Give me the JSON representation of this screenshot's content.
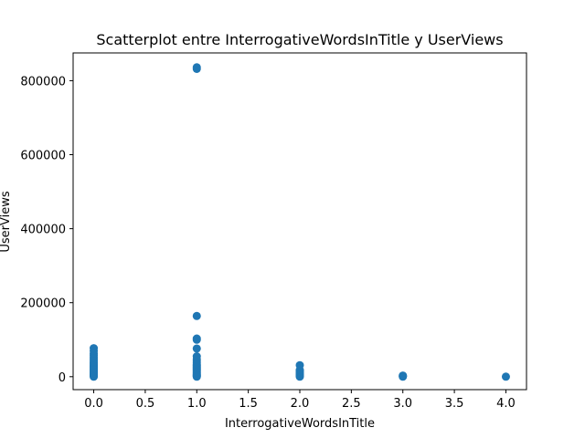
{
  "chart_data": {
    "type": "scatter",
    "title": "Scatterplot entre InterrogativeWordsInTitle y UserViews",
    "xlabel": "InterrogativeWordsInTitle",
    "ylabel": "UserViews",
    "xlim": [
      -0.2,
      4.2
    ],
    "ylim": [
      -35000,
      875000
    ],
    "xticks": [
      0.0,
      0.5,
      1.0,
      1.5,
      2.0,
      2.5,
      3.0,
      3.5,
      4.0
    ],
    "xtick_labels": [
      "0.0",
      "0.5",
      "1.0",
      "1.5",
      "2.0",
      "2.5",
      "3.0",
      "3.5",
      "4.0"
    ],
    "yticks": [
      0,
      200000,
      400000,
      600000,
      800000
    ],
    "ytick_labels": [
      "0",
      "200000",
      "400000",
      "600000",
      "800000"
    ],
    "grid": false,
    "color": "#1f77b4",
    "points": [
      {
        "x": 0,
        "y": 0
      },
      {
        "x": 0,
        "y": 2000
      },
      {
        "x": 0,
        "y": 4000
      },
      {
        "x": 0,
        "y": 6000
      },
      {
        "x": 0,
        "y": 8000
      },
      {
        "x": 0,
        "y": 10000
      },
      {
        "x": 0,
        "y": 13000
      },
      {
        "x": 0,
        "y": 16000
      },
      {
        "x": 0,
        "y": 19000
      },
      {
        "x": 0,
        "y": 22000
      },
      {
        "x": 0,
        "y": 25000
      },
      {
        "x": 0,
        "y": 28000
      },
      {
        "x": 0,
        "y": 31000
      },
      {
        "x": 0,
        "y": 34000
      },
      {
        "x": 0,
        "y": 38000
      },
      {
        "x": 0,
        "y": 42000
      },
      {
        "x": 0,
        "y": 47000
      },
      {
        "x": 0,
        "y": 52000
      },
      {
        "x": 0,
        "y": 58000
      },
      {
        "x": 0,
        "y": 63000
      },
      {
        "x": 0,
        "y": 70000
      },
      {
        "x": 0,
        "y": 77000
      },
      {
        "x": 1,
        "y": 0
      },
      {
        "x": 1,
        "y": 2000
      },
      {
        "x": 1,
        "y": 4000
      },
      {
        "x": 1,
        "y": 6000
      },
      {
        "x": 1,
        "y": 9000
      },
      {
        "x": 1,
        "y": 12000
      },
      {
        "x": 1,
        "y": 15000
      },
      {
        "x": 1,
        "y": 18000
      },
      {
        "x": 1,
        "y": 21000
      },
      {
        "x": 1,
        "y": 24000
      },
      {
        "x": 1,
        "y": 27000
      },
      {
        "x": 1,
        "y": 30000
      },
      {
        "x": 1,
        "y": 33000
      },
      {
        "x": 1,
        "y": 37000
      },
      {
        "x": 1,
        "y": 42000
      },
      {
        "x": 1,
        "y": 47000
      },
      {
        "x": 1,
        "y": 55000
      },
      {
        "x": 1,
        "y": 76000
      },
      {
        "x": 1,
        "y": 100000
      },
      {
        "x": 1,
        "y": 103000
      },
      {
        "x": 1,
        "y": 164000
      },
      {
        "x": 1,
        "y": 832000
      },
      {
        "x": 1,
        "y": 836000
      },
      {
        "x": 2,
        "y": 0
      },
      {
        "x": 2,
        "y": 2000
      },
      {
        "x": 2,
        "y": 4000
      },
      {
        "x": 2,
        "y": 6000
      },
      {
        "x": 2,
        "y": 9000
      },
      {
        "x": 2,
        "y": 12000
      },
      {
        "x": 2,
        "y": 15000
      },
      {
        "x": 2,
        "y": 18000
      },
      {
        "x": 2,
        "y": 31000
      },
      {
        "x": 3,
        "y": 0
      },
      {
        "x": 3,
        "y": 1500
      },
      {
        "x": 3,
        "y": 3000
      },
      {
        "x": 4,
        "y": 0
      }
    ]
  }
}
